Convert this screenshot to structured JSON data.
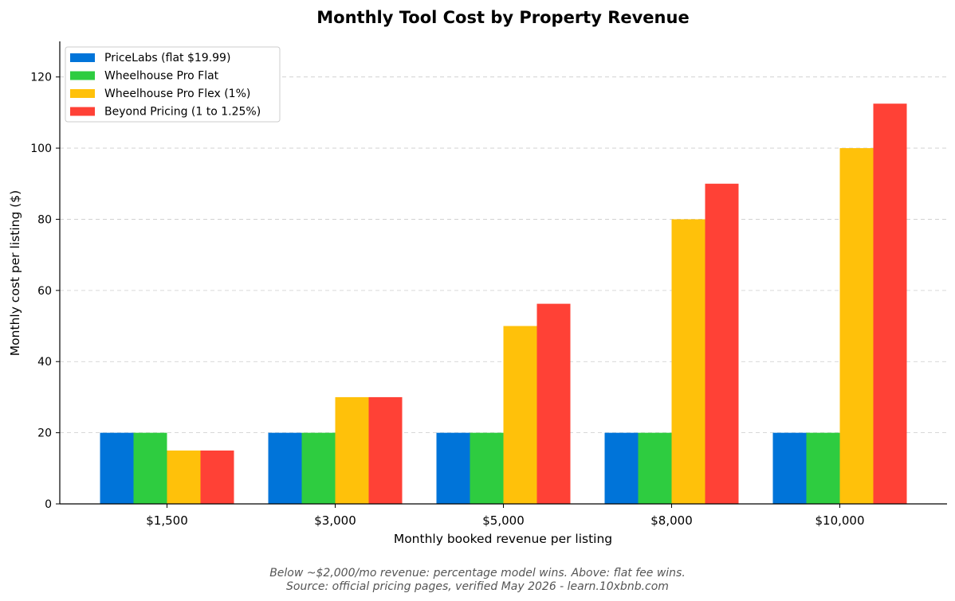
{
  "chart_data": {
    "type": "bar",
    "title": "Monthly Tool Cost by Property Revenue",
    "xlabel": "Monthly booked revenue per listing",
    "ylabel": "Monthly cost per listing ($)",
    "categories": [
      "$1,500",
      "$3,000",
      "$5,000",
      "$8,000",
      "$10,000"
    ],
    "ylim": [
      0,
      130
    ],
    "yticks": [
      0,
      20,
      40,
      60,
      80,
      100,
      120
    ],
    "grid": "y-dashed",
    "legend_position": "top-left",
    "series": [
      {
        "name": "PriceLabs (flat $19.99)",
        "color": "#0074d9",
        "values": [
          19.99,
          19.99,
          19.99,
          19.99,
          19.99
        ]
      },
      {
        "name": "Wheelhouse Pro Flat",
        "color": "#2ecc40",
        "values": [
          19.99,
          19.99,
          19.99,
          19.99,
          19.99
        ]
      },
      {
        "name": "Wheelhouse Pro Flex (1%)",
        "color": "#ffc10a",
        "values": [
          15,
          30,
          50,
          80,
          100
        ]
      },
      {
        "name": "Beyond Pricing (1 to 1.25%)",
        "color": "#ff4136",
        "values": [
          15,
          30,
          56.25,
          90,
          112.5
        ]
      }
    ]
  },
  "footnote": {
    "line1": "Below ~$2,000/mo revenue: percentage model wins. Above: flat fee wins.",
    "line2": "Source: official pricing pages, verified May 2026 - learn.10xbnb.com"
  }
}
